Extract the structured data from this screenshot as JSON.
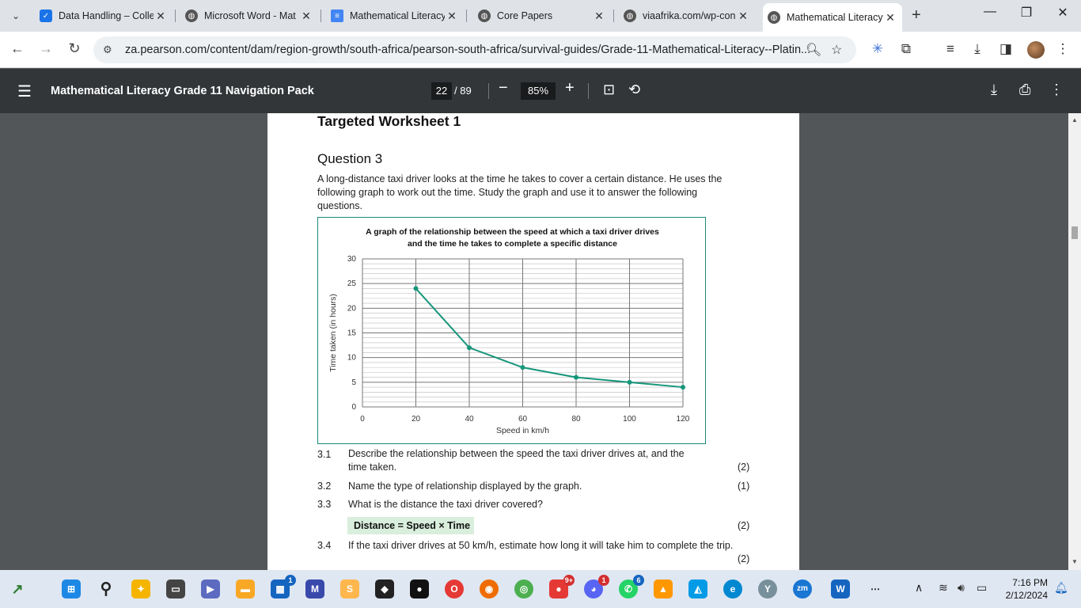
{
  "tabs": [
    {
      "title": "Data Handling – Colle",
      "favicon": "app-icon",
      "color": "#1a73e8"
    },
    {
      "title": "Microsoft Word - Mat",
      "favicon": "globe-icon",
      "color": "#444"
    },
    {
      "title": "Mathematical Literacy",
      "favicon": "docs-icon",
      "color": "#4285f4"
    },
    {
      "title": "Core Papers",
      "favicon": "globe-icon",
      "color": "#444"
    },
    {
      "title": "viaafrika.com/wp-con",
      "favicon": "globe-icon",
      "color": "#444"
    },
    {
      "title": "Mathematical Literacy",
      "favicon": "globe-icon",
      "color": "#444"
    }
  ],
  "address": {
    "url": "za.pearson.com/content/dam/region-growth/south-africa/pearson-south-africa/survival-guides/Grade-11-Mathematical-Literacy--Platin..."
  },
  "pdf": {
    "title": "Mathematical Literacy Grade 11 Navigation Pack",
    "page_current": "22",
    "page_total": "/ 89",
    "zoom": "85%"
  },
  "doc": {
    "worksheet": "Targeted Worksheet 1",
    "question": "Question 3",
    "intro": "A long-distance taxi driver looks at the time he takes to cover a certain distance. He uses the following graph to work out the time. Study the graph and use it to answer the following questions.",
    "items": [
      {
        "num": "3.1",
        "text": "Describe the relationship between the speed the taxi driver drives at, and the time taken.",
        "marks": "(2)"
      },
      {
        "num": "3.2",
        "text": "Name the type of relationship displayed by the graph.",
        "marks": "(1)"
      },
      {
        "num": "3.3",
        "text": "What is the distance the taxi driver covered?",
        "marks": ""
      },
      {
        "num": "",
        "text": "",
        "marks": "(2)"
      },
      {
        "num": "3.4",
        "text": "If the taxi driver drives at 50 km/h, estimate how long it will take him to complete the trip.",
        "marks": "(2)"
      }
    ],
    "formula": "Distance = Speed × Time"
  },
  "chart_data": {
    "type": "line",
    "title_line1": "A graph of the relationship between the speed at which a taxi driver drives",
    "title_line2": "and the time he takes to complete a specific distance",
    "xlabel": "Speed in km/h",
    "ylabel": "Time taken (in hours)",
    "xticks": [
      0,
      20,
      40,
      60,
      80,
      100,
      120
    ],
    "yticks": [
      0,
      5,
      10,
      15,
      20,
      25,
      30
    ],
    "xlim": [
      0,
      120
    ],
    "ylim": [
      0,
      30
    ],
    "x": [
      20,
      40,
      60,
      80,
      100,
      120
    ],
    "y": [
      24,
      12,
      8,
      6,
      5,
      4
    ],
    "color": "#16967a",
    "grid": true
  },
  "taskbar": {
    "badges": {
      "app5": "1",
      "browser": "9+",
      "chat": "1",
      "whatsapp": "6"
    },
    "time": "7:16 PM",
    "date": "2/12/2024"
  }
}
